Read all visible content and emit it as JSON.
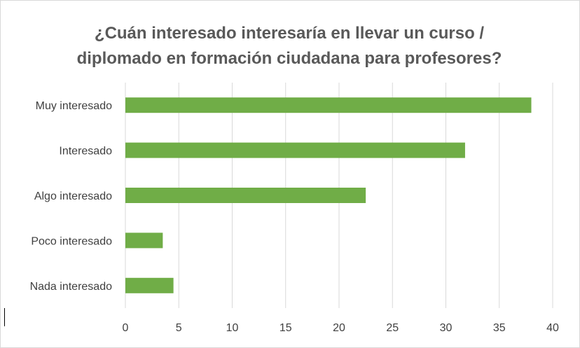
{
  "chart_data": {
    "type": "bar",
    "orientation": "horizontal",
    "title_lines": [
      "¿Cuán interesado interesaría en llevar un curso /",
      "diplomado en formación ciudadana para profesores?"
    ],
    "categories": [
      "Muy interesado",
      "Interesado",
      "Algo interesado",
      "Poco interesado",
      "Nada interesado"
    ],
    "values": [
      38,
      31.8,
      22.5,
      3.5,
      4.5
    ],
    "xlim": [
      0,
      40
    ],
    "xticks": [
      "0",
      "5",
      "10",
      "15",
      "20",
      "25",
      "30",
      "35",
      "40"
    ],
    "xlabel": "",
    "ylabel": "",
    "grid": "vertical",
    "legend": "none",
    "bar_color": "#70ad47"
  }
}
